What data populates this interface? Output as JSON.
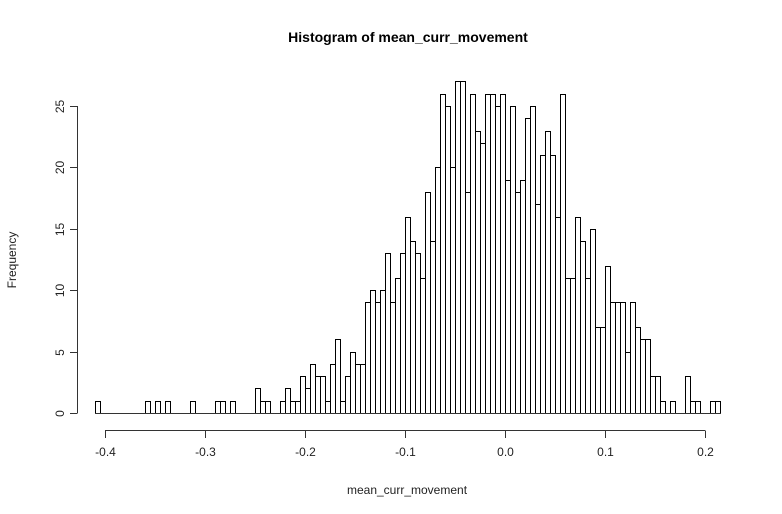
{
  "chart_data": {
    "type": "bar",
    "subtype": "histogram",
    "title": "Histogram of mean_curr_movement",
    "xlabel": "mean_curr_movement",
    "ylabel": "Frequency",
    "xlim": [
      -0.41,
      0.22
    ],
    "ylim": [
      0,
      27
    ],
    "x_ticks": [
      "-0.4",
      "-0.3",
      "-0.2",
      "-0.1",
      "0.0",
      "0.1",
      "0.2"
    ],
    "x_tick_values": [
      -0.4,
      -0.3,
      -0.2,
      -0.1,
      0.0,
      0.1,
      0.2
    ],
    "y_ticks": [
      "0",
      "5",
      "10",
      "15",
      "20",
      "25"
    ],
    "y_tick_values": [
      0,
      5,
      10,
      15,
      20,
      25
    ],
    "grid": false,
    "legend": null,
    "bin_start": -0.41,
    "bin_width": 0.005,
    "values": [
      1,
      0,
      0,
      0,
      0,
      0,
      0,
      0,
      0,
      0,
      1,
      0,
      1,
      0,
      1,
      0,
      0,
      0,
      0,
      1,
      0,
      0,
      0,
      0,
      1,
      1,
      0,
      1,
      0,
      0,
      0,
      0,
      2,
      1,
      1,
      0,
      0,
      1,
      2,
      1,
      1,
      3,
      2,
      4,
      3,
      3,
      1,
      4,
      6,
      1,
      3,
      5,
      4,
      4,
      9,
      10,
      9,
      10,
      13,
      9,
      11,
      13,
      16,
      14,
      13,
      11,
      18,
      14,
      20,
      26,
      25,
      20,
      27,
      27,
      18,
      26,
      23,
      22,
      26,
      26,
      25,
      26,
      19,
      25,
      18,
      19,
      24,
      25,
      17,
      21,
      23,
      21,
      16,
      26,
      11,
      11,
      16,
      14,
      11,
      15,
      7,
      7,
      12,
      9,
      9,
      9,
      5,
      9,
      7,
      6,
      6,
      3,
      3,
      1,
      0,
      1,
      0,
      0,
      3,
      1,
      1,
      0,
      0,
      1,
      1
    ]
  },
  "colors": {
    "bar_fill": "#ffffff",
    "bar_stroke": "#000000",
    "axis": "#333333",
    "text": "#222222"
  }
}
